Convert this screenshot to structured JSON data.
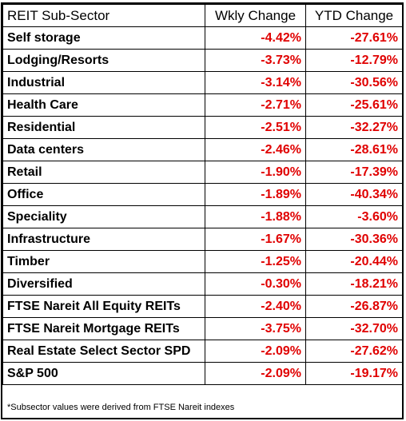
{
  "table": {
    "headers": {
      "sector": "REIT Sub-Sector",
      "weekly": "Wkly Change",
      "ytd": "YTD Change"
    },
    "rows": [
      {
        "sector": "Self storage",
        "weekly": "-4.42%",
        "ytd": "-27.61%"
      },
      {
        "sector": "Lodging/Resorts",
        "weekly": "-3.73%",
        "ytd": "-12.79%"
      },
      {
        "sector": "Industrial",
        "weekly": "-3.14%",
        "ytd": "-30.56%"
      },
      {
        "sector": "Health Care",
        "weekly": "-2.71%",
        "ytd": "-25.61%"
      },
      {
        "sector": "Residential",
        "weekly": "-2.51%",
        "ytd": "-32.27%"
      },
      {
        "sector": "Data centers",
        "weekly": "-2.46%",
        "ytd": "-28.61%"
      },
      {
        "sector": "Retail",
        "weekly": "-1.90%",
        "ytd": "-17.39%"
      },
      {
        "sector": "Office",
        "weekly": "-1.89%",
        "ytd": "-40.34%"
      },
      {
        "sector": "Speciality",
        "weekly": "-1.88%",
        "ytd": "-3.60%"
      },
      {
        "sector": "Infrastructure",
        "weekly": "-1.67%",
        "ytd": "-30.36%"
      },
      {
        "sector": "Timber",
        "weekly": "-1.25%",
        "ytd": "-20.44%"
      },
      {
        "sector": "Diversified",
        "weekly": "-0.30%",
        "ytd": "-18.21%"
      },
      {
        "sector": "FTSE Nareit All Equity REITs",
        "weekly": "-2.40%",
        "ytd": "-26.87%"
      },
      {
        "sector": "FTSE Nareit Mortgage REITs",
        "weekly": "-3.75%",
        "ytd": "-32.70%"
      },
      {
        "sector": "Real Estate Select Sector SPD",
        "weekly": "-2.09%",
        "ytd": "-27.62%"
      },
      {
        "sector": "S&P 500",
        "weekly": "-2.09%",
        "ytd": "-19.17%"
      }
    ]
  },
  "footnote": "*Subsector values were derived from FTSE Nareit indexes",
  "colors": {
    "negative": "#e00000",
    "text": "#000000",
    "border": "#000000",
    "background": "#ffffff"
  }
}
